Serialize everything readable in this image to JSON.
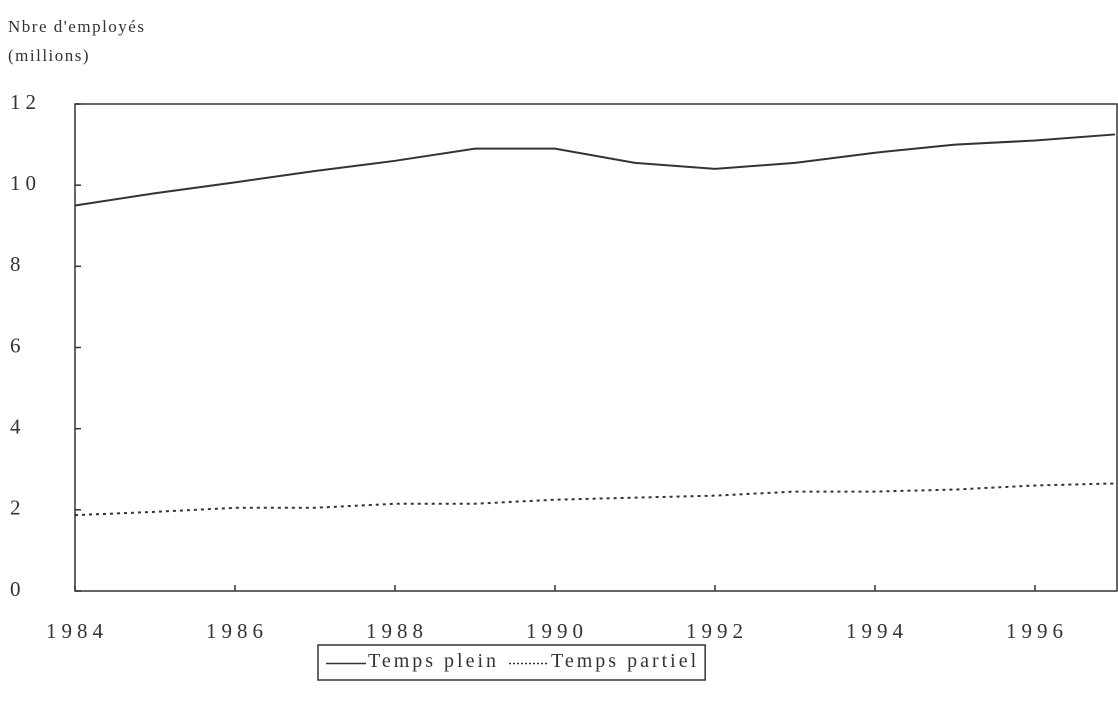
{
  "chart_data": {
    "type": "line",
    "ylabel": [
      "Nbre d'employés",
      "(millions)"
    ],
    "x": [
      1984,
      1985,
      1986,
      1987,
      1988,
      1989,
      1990,
      1991,
      1992,
      1993,
      1994,
      1995,
      1996,
      1997
    ],
    "series": [
      {
        "name": "Temps plein",
        "color": "#333333",
        "style": "solid",
        "values": [
          9.5,
          9.8,
          10.07,
          10.35,
          10.6,
          10.9,
          10.9,
          10.55,
          10.4,
          10.55,
          10.8,
          11.0,
          11.1,
          11.25
        ]
      },
      {
        "name": "Temps partiel",
        "color": "#333333",
        "style": "dotted",
        "values": [
          1.87,
          1.95,
          2.05,
          2.05,
          2.15,
          2.15,
          2.25,
          2.3,
          2.35,
          2.45,
          2.45,
          2.5,
          2.6,
          2.65
        ]
      }
    ],
    "xlim": [
      1984,
      1997
    ],
    "xticks": [
      1984,
      1986,
      1988,
      1990,
      1992,
      1994,
      1996
    ],
    "ylim": [
      0,
      12
    ],
    "yticks": [
      0,
      2,
      4,
      6,
      8,
      10,
      12
    ],
    "legend": "bottom"
  }
}
